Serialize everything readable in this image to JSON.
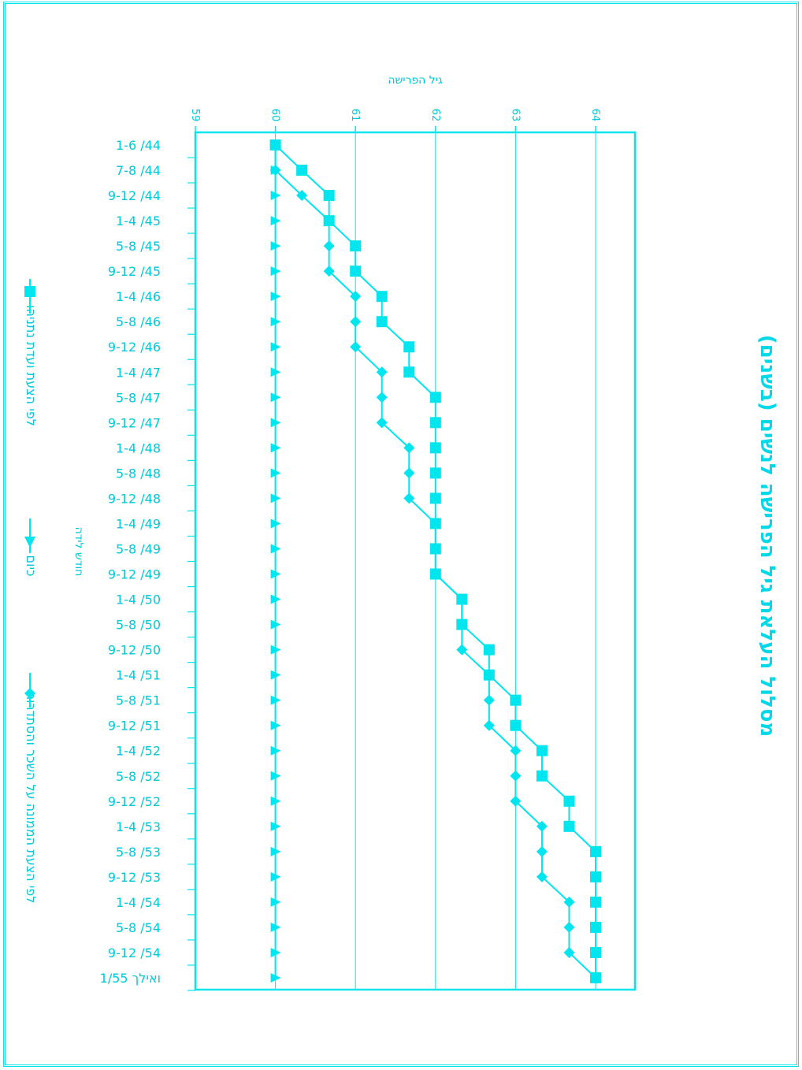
{
  "colors": {
    "accent": "#00e5ee",
    "text": "#00c8d8"
  },
  "chart_data": {
    "type": "line",
    "title": "מסלול העלאת גיל הפרישה לנשים (בשנים)",
    "xlabel": "חודש לידה",
    "ylabel": "גיל הפרישה",
    "ylim": [
      59,
      64
    ],
    "yticks": [
      59,
      60,
      61,
      62,
      63,
      64
    ],
    "legend_position": "left",
    "categories": [
      "1-6 /44",
      "7-8 /44",
      "9-12 /44",
      "1-4 /45",
      "5-8 /45",
      "9-12 /45",
      "1-4 /46",
      "5-8 /46",
      "9-12 /46",
      "1-4 /47",
      "5-8 /47",
      "9-12 /47",
      "1-4 /48",
      "5-8 /48",
      "9-12 /48",
      "1-4 /49",
      "5-8 /49",
      "9-12 /49",
      "1-4 /50",
      "5-8 /50",
      "9-12 /50",
      "1-4 /51",
      "5-8 /51",
      "9-12 /51",
      "1-4 /52",
      "5-8 /52",
      "9-12 /52",
      "1-4 /53",
      "5-8 /53",
      "9-12 /53",
      "1-4 /54",
      "5-8 /54",
      "9-12 /54",
      "1/55 ואילך"
    ],
    "series": [
      {
        "name": "לפי הצעת ועדת נתניהו",
        "marker": "square",
        "values": [
          60,
          60.33,
          60.67,
          60.67,
          61,
          61,
          61.33,
          61.33,
          61.67,
          61.67,
          62,
          62,
          62,
          62,
          62,
          62,
          62,
          62,
          62.33,
          62.33,
          62.67,
          62.67,
          63,
          63,
          63.33,
          63.33,
          63.67,
          63.67,
          64,
          64,
          64,
          64,
          64,
          64
        ]
      },
      {
        "name": "כיום",
        "marker": "triangle",
        "values": [
          60,
          60,
          60,
          60,
          60,
          60,
          60,
          60,
          60,
          60,
          60,
          60,
          60,
          60,
          60,
          60,
          60,
          60,
          60,
          60,
          60,
          60,
          60,
          60,
          60,
          60,
          60,
          60,
          60,
          60,
          60,
          60,
          60,
          60
        ]
      },
      {
        "name": "לפי הצעת הממונה על השכר והסתדרות",
        "marker": "diamond",
        "values": [
          60,
          60,
          60.33,
          60.67,
          60.67,
          60.67,
          61,
          61,
          61,
          61.33,
          61.33,
          61.33,
          61.67,
          61.67,
          61.67,
          62,
          62,
          62,
          62.33,
          62.33,
          62.33,
          62.67,
          62.67,
          62.67,
          63,
          63,
          63,
          63.33,
          63.33,
          63.33,
          63.67,
          63.67,
          63.67,
          64
        ]
      }
    ]
  }
}
